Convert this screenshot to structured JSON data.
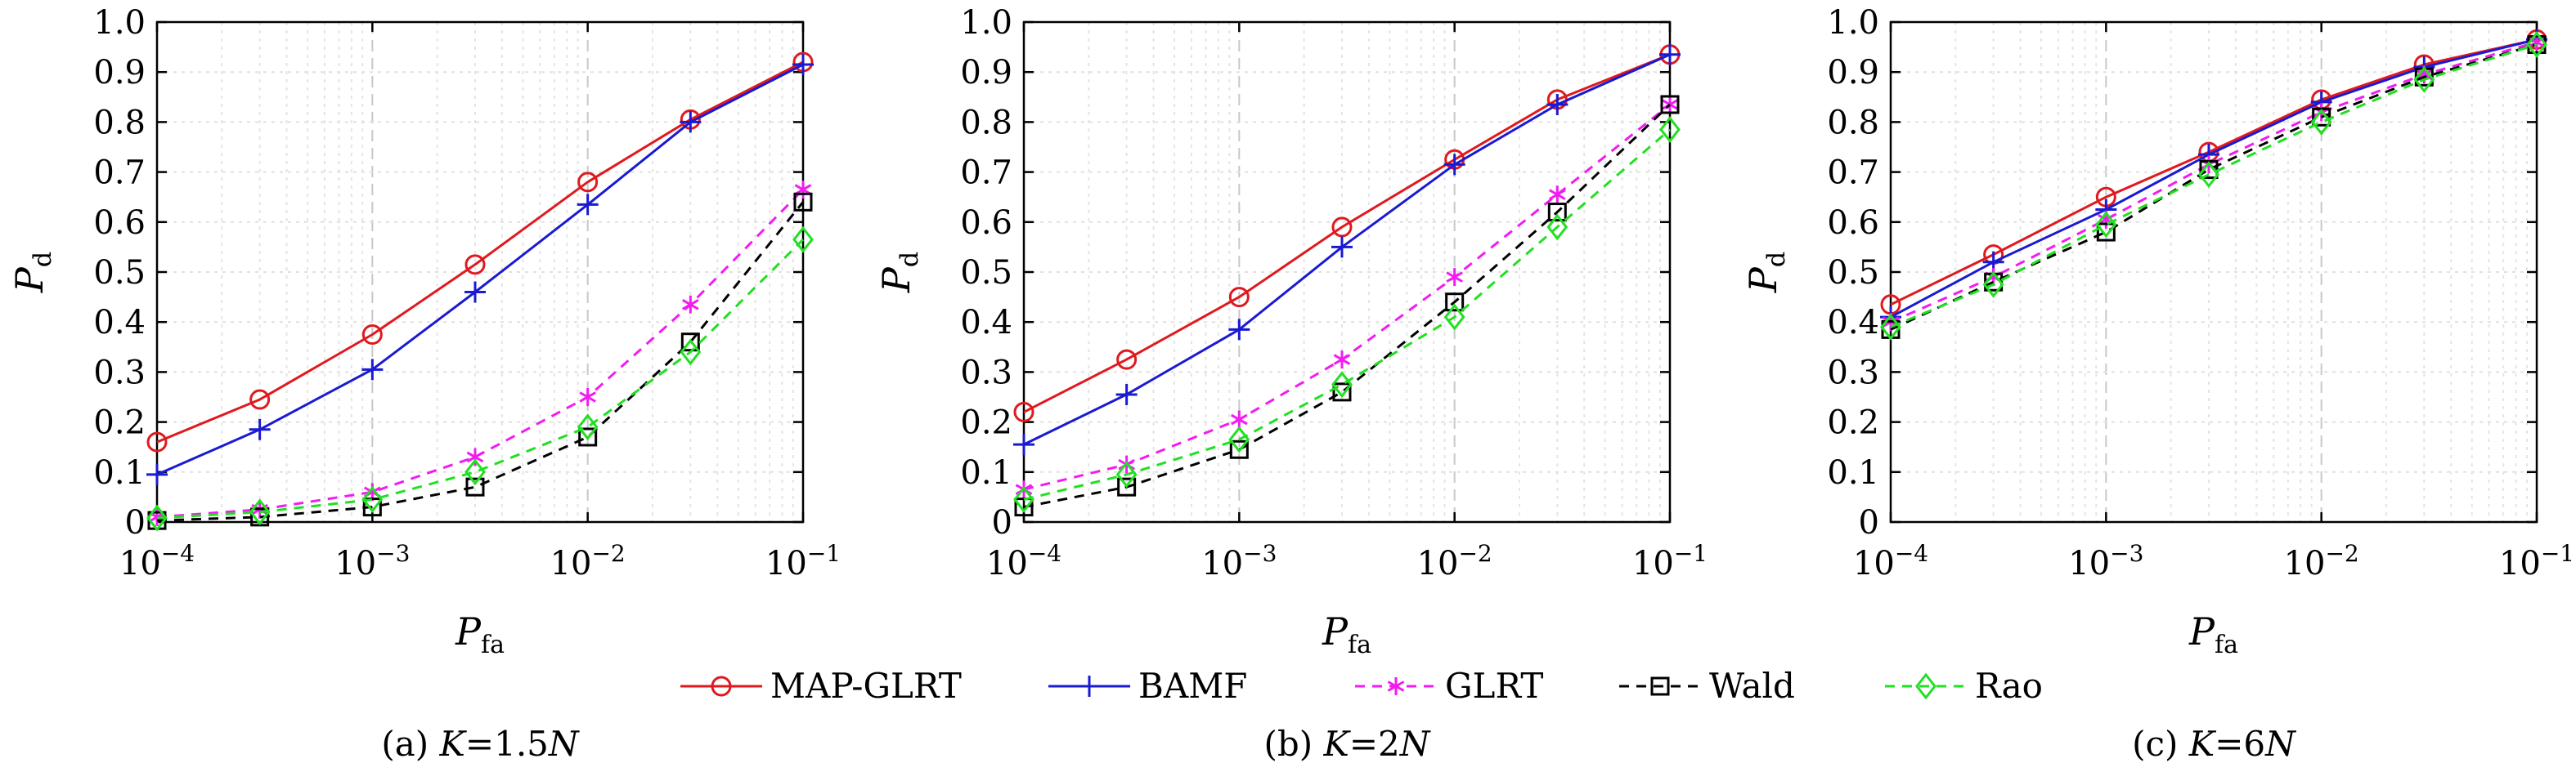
{
  "legend": [
    {
      "key": "map",
      "label": "MAP-GLRT"
    },
    {
      "key": "bamf",
      "label": "BAMF"
    },
    {
      "key": "glrt",
      "label": "GLRT"
    },
    {
      "key": "wald",
      "label": "Wald"
    },
    {
      "key": "rao",
      "label": "Rao"
    }
  ],
  "styles": {
    "map": {
      "color": "#e0191e",
      "dash": "solid",
      "marker": "circle"
    },
    "bamf": {
      "color": "#1a1ad2",
      "dash": "solid",
      "marker": "plus"
    },
    "glrt": {
      "color": "#f21cf2",
      "dash": "dashed",
      "marker": "asterisk"
    },
    "wald": {
      "color": "#000000",
      "dash": "dashed",
      "marker": "square"
    },
    "rao": {
      "color": "#21e021",
      "dash": "dashed",
      "marker": "diamond"
    }
  },
  "chart_data": [
    {
      "type": "line",
      "caption": "(a) K=1.5N",
      "xlabel": "P_fa",
      "ylabel": "P_d",
      "xscale": "log",
      "xlim": [
        0.0001,
        0.1
      ],
      "ylim": [
        0,
        1
      ],
      "x_tick_labels": [
        "10^-4",
        "10^-3",
        "10^-2",
        "10^-1"
      ],
      "y_tick_labels": [
        "0",
        "0.1",
        "0.2",
        "0.3",
        "0.4",
        "0.5",
        "0.6",
        "0.7",
        "0.8",
        "0.9",
        "1.0"
      ],
      "grid": true,
      "x": [
        0.0001,
        0.0003,
        0.001,
        0.003,
        0.01,
        0.03,
        0.1
      ],
      "series": [
        {
          "key": "map",
          "values": [
            0.16,
            0.245,
            0.375,
            0.515,
            0.68,
            0.805,
            0.92
          ]
        },
        {
          "key": "bamf",
          "values": [
            0.095,
            0.185,
            0.305,
            0.46,
            0.635,
            0.8,
            0.915
          ]
        },
        {
          "key": "glrt",
          "values": [
            0.01,
            0.025,
            0.06,
            0.13,
            0.25,
            0.435,
            0.665
          ]
        },
        {
          "key": "wald",
          "values": [
            0.003,
            0.01,
            0.03,
            0.07,
            0.17,
            0.36,
            0.64
          ]
        },
        {
          "key": "rao",
          "values": [
            0.008,
            0.02,
            0.045,
            0.1,
            0.19,
            0.34,
            0.565
          ]
        }
      ]
    },
    {
      "type": "line",
      "caption": "(b) K=2N",
      "xlabel": "P_fa",
      "ylabel": "P_d",
      "xscale": "log",
      "xlim": [
        0.0001,
        0.1
      ],
      "ylim": [
        0,
        1
      ],
      "x_tick_labels": [
        "10^-4",
        "10^-3",
        "10^-2",
        "10^-1"
      ],
      "y_tick_labels": [
        "0",
        "0.1",
        "0.2",
        "0.3",
        "0.4",
        "0.5",
        "0.6",
        "0.7",
        "0.8",
        "0.9",
        "1.0"
      ],
      "grid": true,
      "x": [
        0.0001,
        0.0003,
        0.001,
        0.003,
        0.01,
        0.03,
        0.1
      ],
      "series": [
        {
          "key": "map",
          "values": [
            0.22,
            0.325,
            0.45,
            0.59,
            0.725,
            0.845,
            0.935
          ]
        },
        {
          "key": "bamf",
          "values": [
            0.155,
            0.255,
            0.385,
            0.55,
            0.715,
            0.835,
            0.935
          ]
        },
        {
          "key": "glrt",
          "values": [
            0.065,
            0.115,
            0.205,
            0.325,
            0.49,
            0.655,
            0.835
          ]
        },
        {
          "key": "wald",
          "values": [
            0.03,
            0.07,
            0.145,
            0.26,
            0.44,
            0.62,
            0.835
          ]
        },
        {
          "key": "rao",
          "values": [
            0.045,
            0.095,
            0.165,
            0.275,
            0.41,
            0.59,
            0.785
          ]
        }
      ]
    },
    {
      "type": "line",
      "caption": "(c) K=6N",
      "xlabel": "P_fa",
      "ylabel": "P_d",
      "xscale": "log",
      "xlim": [
        0.0001,
        0.1
      ],
      "ylim": [
        0,
        1
      ],
      "x_tick_labels": [
        "10^-4",
        "10^-3",
        "10^-2",
        "10^-1"
      ],
      "y_tick_labels": [
        "0",
        "0.1",
        "0.2",
        "0.3",
        "0.4",
        "0.5",
        "0.6",
        "0.7",
        "0.8",
        "0.9",
        "1.0"
      ],
      "grid": true,
      "x": [
        0.0001,
        0.0003,
        0.001,
        0.003,
        0.01,
        0.03,
        0.1
      ],
      "series": [
        {
          "key": "map",
          "values": [
            0.435,
            0.535,
            0.65,
            0.74,
            0.845,
            0.915,
            0.965
          ]
        },
        {
          "key": "bamf",
          "values": [
            0.41,
            0.52,
            0.625,
            0.735,
            0.84,
            0.91,
            0.965
          ]
        },
        {
          "key": "glrt",
          "values": [
            0.4,
            0.49,
            0.605,
            0.715,
            0.82,
            0.895,
            0.96
          ]
        },
        {
          "key": "wald",
          "values": [
            0.385,
            0.48,
            0.58,
            0.705,
            0.81,
            0.89,
            0.955
          ]
        },
        {
          "key": "rao",
          "values": [
            0.39,
            0.475,
            0.595,
            0.695,
            0.8,
            0.885,
            0.955
          ]
        }
      ]
    }
  ]
}
